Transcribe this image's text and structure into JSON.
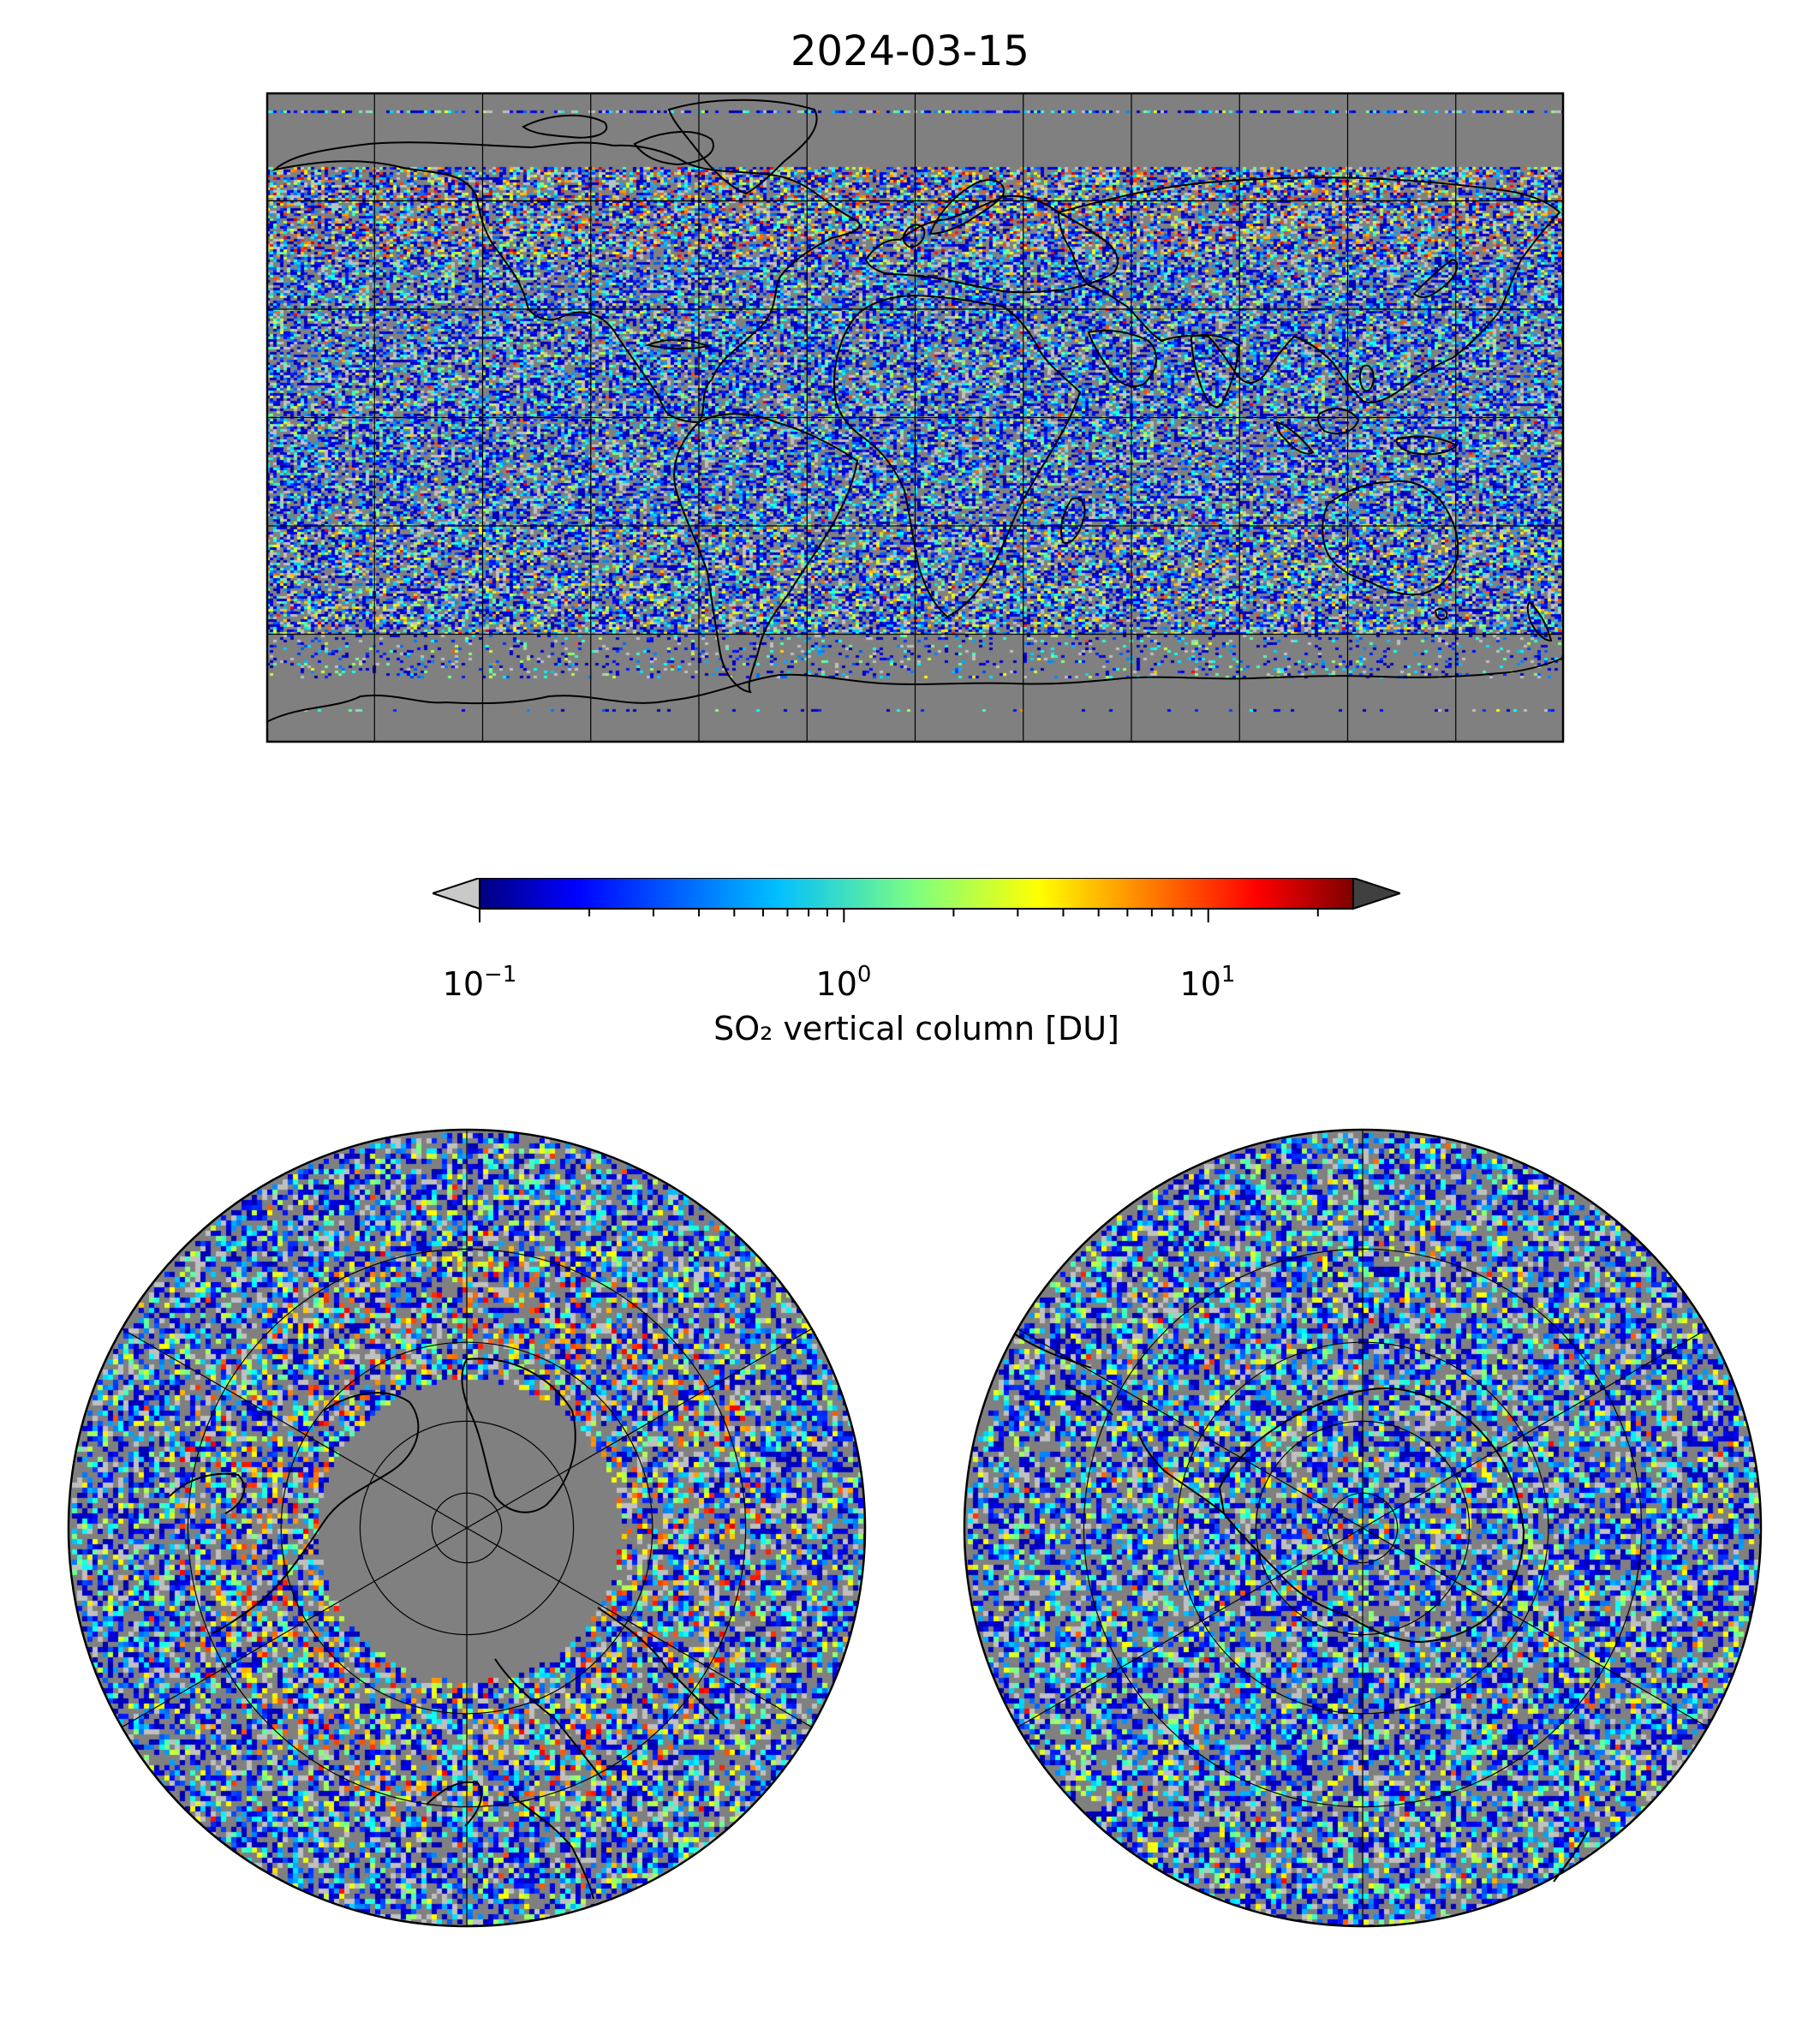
{
  "figure": {
    "title": "2024-03-15"
  },
  "global_map": {
    "projection": "equirectangular",
    "gridlines": {
      "lon_step_deg": 30,
      "lat_step_deg": 30
    },
    "colors": {
      "background": "#808080",
      "no_data": "#808080",
      "below_range": "#c0c0c0",
      "coastline": "#000000",
      "grid": "#000000"
    }
  },
  "colorbar": {
    "colormap": "jet",
    "scale": "log",
    "vmin": 0.1,
    "vmax": 25,
    "extend": "both",
    "under_color": "#c8c8c8",
    "over_color": "#404040",
    "ticks": [
      {
        "base": "10",
        "exponent": "−1",
        "value": 0.1
      },
      {
        "base": "10",
        "exponent": "0",
        "value": 1
      },
      {
        "base": "10",
        "exponent": "1",
        "value": 10
      }
    ],
    "label": "SO₂ vertical column [DU]"
  },
  "north_polar_map": {
    "projection": "north-polar-stereographic",
    "gridlines": {
      "lon_step_deg": 60,
      "lat_circles_deg": [
        80,
        60,
        40,
        20
      ]
    }
  },
  "south_polar_map": {
    "projection": "south-polar-stereographic",
    "gridlines": {
      "lon_step_deg": 60,
      "lat_circles_deg": [
        -80,
        -60,
        -40,
        -20
      ]
    }
  }
}
